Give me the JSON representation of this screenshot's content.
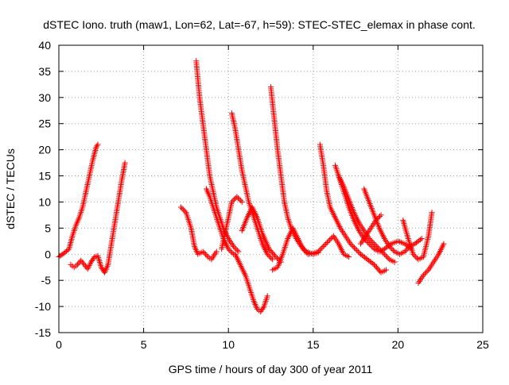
{
  "chart_data": {
    "type": "scatter",
    "title": "dSTEC Iono. truth (maw1, Lon=62, Lat=-67, h=59): STEC-STEC_elemax in phase cont.",
    "xlabel": "GPS time / hours of day 300 of year 2011",
    "ylabel": "dSTEC  / TECUs",
    "xlim": [
      0,
      25
    ],
    "ylim": [
      -15,
      40
    ],
    "xticks": [
      "0",
      "5",
      "10",
      "15",
      "20",
      "25"
    ],
    "yticks": [
      "-15",
      "-10",
      "-5",
      "0",
      "5",
      "10",
      "15",
      "20",
      "25",
      "30",
      "35",
      "40"
    ],
    "grid": true,
    "marker": "+",
    "color": "#ff0000",
    "series": [
      {
        "x": [
          0.0,
          0.3,
          0.6,
          0.8,
          1.0,
          1.2,
          1.4,
          1.6,
          1.8,
          2.0,
          2.2,
          2.3
        ],
        "y": [
          -0.5,
          0.2,
          1.0,
          3.5,
          5.5,
          7.0,
          9.0,
          12.0,
          15.0,
          18.0,
          20.5,
          21.0
        ]
      },
      {
        "x": [
          0.7,
          0.9,
          1.1,
          1.3,
          1.5,
          1.7,
          1.9,
          2.1,
          2.3,
          2.5,
          2.7,
          2.9,
          3.1,
          3.3,
          3.5,
          3.7,
          3.9
        ],
        "y": [
          -2.0,
          -2.5,
          -2.0,
          -1.2,
          -2.0,
          -2.8,
          -1.5,
          -0.5,
          -0.3,
          -2.5,
          -3.5,
          -2.0,
          2.0,
          6.0,
          10.0,
          14.0,
          17.5
        ]
      },
      {
        "x": [
          7.2,
          7.5,
          7.8,
          8.0,
          8.2,
          8.5,
          8.8,
          9.0,
          9.3
        ],
        "y": [
          9.0,
          8.0,
          5.0,
          1.5,
          0.0,
          0.5,
          -0.5,
          -1.0,
          0.5
        ]
      },
      {
        "x": [
          8.1,
          8.3,
          8.5,
          8.7,
          8.9,
          9.1,
          9.3,
          9.5,
          9.7,
          10.0,
          10.3,
          10.6
        ],
        "y": [
          37.0,
          30.0,
          25.0,
          20.0,
          15.0,
          12.0,
          9.0,
          7.0,
          5.0,
          3.0,
          1.5,
          0.5
        ]
      },
      {
        "x": [
          8.7,
          8.9,
          9.1,
          9.4,
          9.7,
          10.0,
          10.3
        ],
        "y": [
          12.5,
          11.0,
          9.0,
          6.0,
          3.0,
          1.0,
          0.0
        ]
      },
      {
        "x": [
          9.6,
          9.8,
          10.0,
          10.2,
          10.5,
          10.8
        ],
        "y": [
          1.0,
          4.0,
          7.0,
          10.0,
          11.0,
          10.0
        ]
      },
      {
        "x": [
          10.2,
          10.4,
          10.6,
          10.8,
          11.0,
          11.2,
          11.4,
          11.6,
          11.8,
          12.0,
          12.3,
          12.6
        ],
        "y": [
          27.0,
          24.0,
          20.0,
          16.0,
          13.0,
          10.0,
          8.0,
          6.0,
          4.0,
          2.0,
          0.0,
          -1.0
        ]
      },
      {
        "x": [
          10.4,
          10.7,
          11.0,
          11.3,
          11.5,
          11.7,
          11.9,
          12.1,
          12.3
        ],
        "y": [
          0.0,
          -2.0,
          -4.0,
          -7.0,
          -9.0,
          -10.5,
          -11.0,
          -10.0,
          -8.0
        ]
      },
      {
        "x": [
          10.8,
          11.1,
          11.4,
          11.7,
          12.0,
          12.4,
          12.8,
          13.1
        ],
        "y": [
          4.5,
          7.0,
          9.0,
          7.0,
          4.0,
          1.0,
          -0.5,
          -1.5
        ]
      },
      {
        "x": [
          12.5,
          12.7,
          12.9,
          13.1,
          13.3,
          13.5,
          13.7,
          14.0,
          14.3,
          14.6,
          15.0,
          15.3
        ],
        "y": [
          32.0,
          26.0,
          20.0,
          15.0,
          10.0,
          7.0,
          5.0,
          3.0,
          1.5,
          0.5,
          0.0,
          0.3
        ]
      },
      {
        "x": [
          12.6,
          12.9,
          13.2,
          13.5,
          13.8,
          14.1,
          14.4,
          14.7,
          15.0,
          15.3,
          15.6,
          15.9,
          16.2,
          16.5,
          16.8,
          17.1
        ],
        "y": [
          -3.0,
          -2.5,
          0.0,
          3.0,
          5.0,
          3.0,
          1.0,
          0.0,
          0.2,
          0.5,
          1.5,
          2.5,
          3.5,
          2.0,
          0.0,
          -0.5
        ]
      },
      {
        "x": [
          15.4,
          15.6,
          15.8,
          16.0,
          16.3,
          16.6,
          16.9,
          17.2,
          17.5,
          17.8,
          18.2,
          18.6,
          19.0,
          19.3
        ],
        "y": [
          21.0,
          17.0,
          12.0,
          9.0,
          7.0,
          5.0,
          3.5,
          2.0,
          1.0,
          0.0,
          -1.0,
          -2.0,
          -3.5,
          -3.0
        ]
      },
      {
        "x": [
          16.3,
          16.5,
          16.8,
          17.1,
          17.4,
          17.7,
          18.0,
          18.3,
          18.6,
          18.9,
          19.2,
          19.6,
          20.0,
          20.4,
          20.8
        ],
        "y": [
          17.0,
          15.0,
          12.0,
          9.0,
          6.5,
          4.5,
          3.0,
          2.0,
          1.0,
          0.5,
          1.0,
          2.0,
          2.5,
          2.0,
          1.0
        ]
      },
      {
        "x": [
          16.5,
          16.8,
          17.1,
          17.4,
          17.7,
          18.0,
          18.3,
          18.6,
          18.9,
          19.2,
          19.5,
          19.8
        ],
        "y": [
          15.0,
          13.0,
          10.5,
          8.0,
          6.0,
          4.5,
          3.0,
          2.0,
          1.0,
          0.0,
          -1.0,
          -1.5
        ]
      },
      {
        "x": [
          18.0,
          18.3,
          18.6,
          18.9,
          19.2,
          19.5,
          19.8,
          20.1,
          20.4,
          20.7,
          21.0,
          21.4
        ],
        "y": [
          12.5,
          10.0,
          7.5,
          5.0,
          3.0,
          1.5,
          0.5,
          0.0,
          0.5,
          1.5,
          2.0,
          3.0
        ]
      },
      {
        "x": [
          17.8,
          18.1,
          18.4,
          18.7,
          19.0
        ],
        "y": [
          2.0,
          3.5,
          5.0,
          6.5,
          7.5
        ]
      },
      {
        "x": [
          20.3,
          20.6,
          20.9,
          21.2,
          21.5,
          21.8,
          22.0
        ],
        "y": [
          6.5,
          3.0,
          0.0,
          -1.0,
          -0.5,
          3.5,
          8.0
        ]
      },
      {
        "x": [
          21.2,
          21.5,
          21.8,
          22.1,
          22.4,
          22.7
        ],
        "y": [
          -5.5,
          -4.0,
          -3.0,
          -1.5,
          0.0,
          2.0
        ]
      }
    ]
  }
}
